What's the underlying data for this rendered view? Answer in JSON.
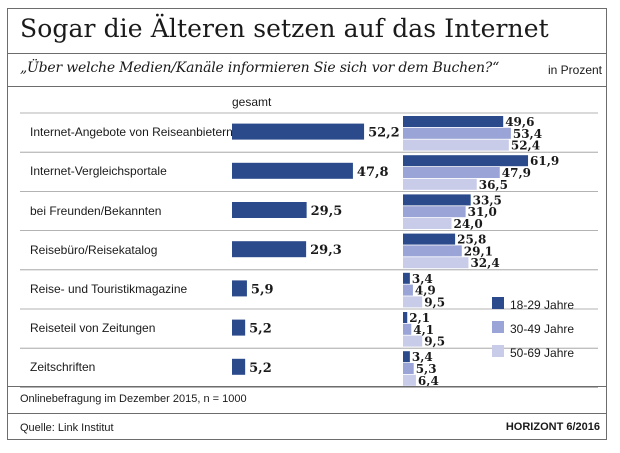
{
  "chart_data": {
    "type": "bar",
    "title": "Sogar die Älteren setzen auf das Internet",
    "subtitle": "„Über welche Medien/Kanäle informieren Sie sich vor dem Buchen?“",
    "unit": "in Prozent",
    "total_label": "gesamt",
    "categories": [
      "Internet-Angebote von Reiseanbietern",
      "Internet-Vergleichsportale",
      "bei Freunden/Bekannten",
      "Reisebüro/Reisekatalog",
      "Reise- und Touristikmagazine",
      "Reiseteil von Zeitungen",
      "Zeitschriften"
    ],
    "total": [
      52.2,
      47.8,
      29.5,
      29.3,
      5.9,
      5.2,
      5.2
    ],
    "series": [
      {
        "name": "18-29 Jahre",
        "values": [
          49.6,
          61.9,
          33.5,
          25.8,
          3.4,
          2.1,
          3.4
        ],
        "color": "#2b4a8b"
      },
      {
        "name": "30-49 Jahre",
        "values": [
          53.4,
          47.9,
          31.0,
          29.1,
          4.9,
          4.1,
          5.3
        ],
        "color": "#9aa4d6"
      },
      {
        "name": "50-69 Jahre",
        "values": [
          52.4,
          36.5,
          24.0,
          32.4,
          9.5,
          9.5,
          6.4
        ],
        "color": "#c8cce9"
      }
    ],
    "total_color": "#2b4a8b",
    "legend_position": "right",
    "footnote": "Onlinebefragung im Dezember 2015, n = 1000",
    "source": "Quelle: Link Institut",
    "publication": "HORIZONT 6/2016"
  }
}
